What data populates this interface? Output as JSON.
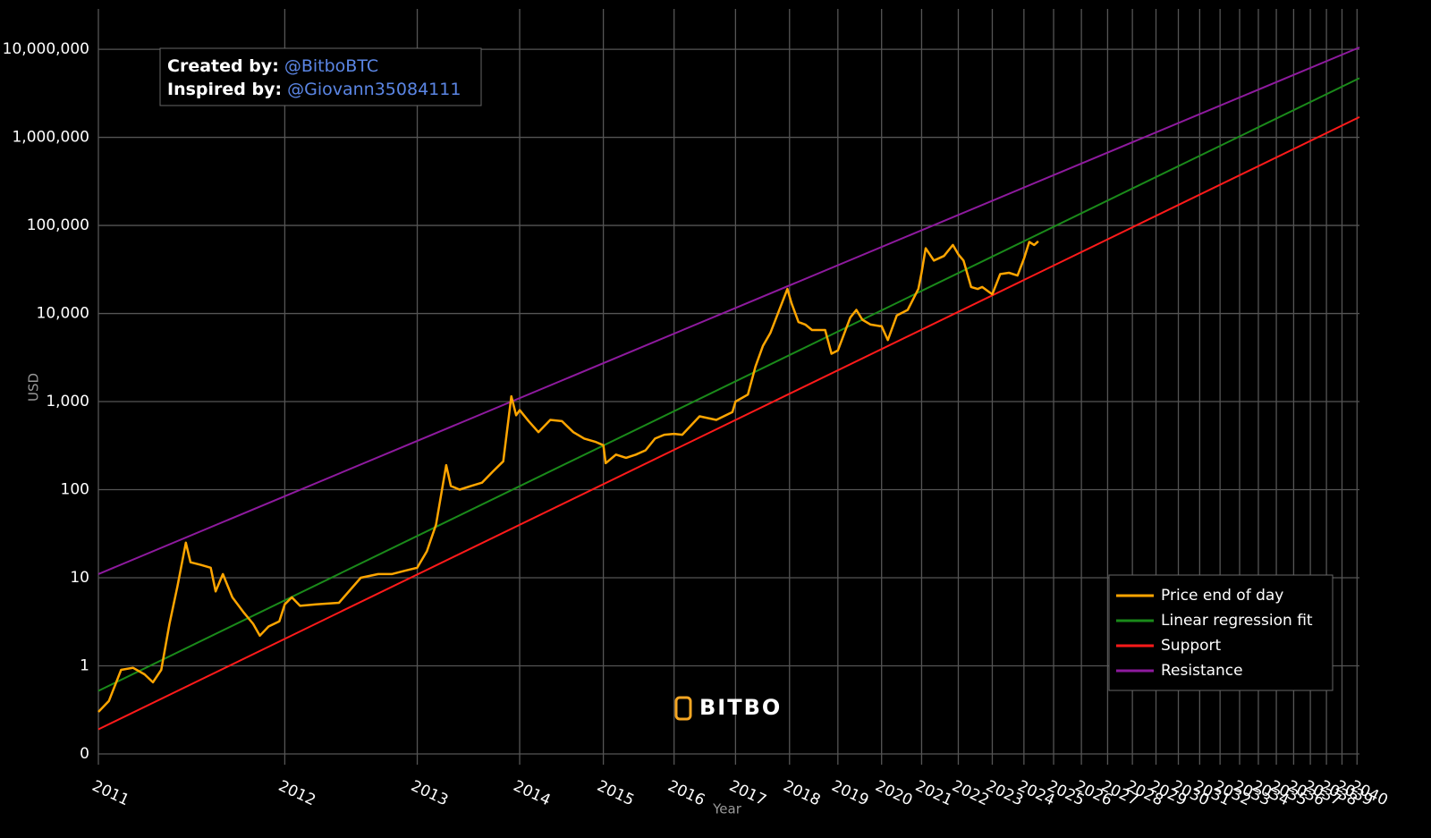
{
  "chart_data": {
    "type": "line",
    "x_label": "Year",
    "y_label": "USD",
    "x_scale": "log",
    "y_scale": "log",
    "grid": true,
    "legend": "bottom-right",
    "watermark": "BITBO",
    "annotation": [
      {
        "label": "Created by:",
        "handle": "@BitboBTC"
      },
      {
        "label": "Inspired by:",
        "handle": "@Giovann35084111"
      }
    ],
    "xlim": [
      728,
      11380
    ],
    "ylim": [
      0.0755,
      28700000
    ],
    "xticks": [
      {
        "value": 728,
        "label": "2011"
      },
      {
        "value": 1093,
        "label": "2012"
      },
      {
        "value": 1459,
        "label": "2013"
      },
      {
        "value": 1824,
        "label": "2014"
      },
      {
        "value": 2189,
        "label": "2015"
      },
      {
        "value": 2554,
        "label": "2016"
      },
      {
        "value": 2920,
        "label": "2017"
      },
      {
        "value": 3285,
        "label": "2018"
      },
      {
        "value": 3650,
        "label": "2019"
      },
      {
        "value": 4015,
        "label": "2020"
      },
      {
        "value": 4381,
        "label": "2021"
      },
      {
        "value": 4746,
        "label": "2022"
      },
      {
        "value": 5111,
        "label": "2023"
      },
      {
        "value": 5476,
        "label": "2024"
      },
      {
        "value": 5842,
        "label": "2025"
      },
      {
        "value": 6207,
        "label": "2026"
      },
      {
        "value": 6572,
        "label": "2027"
      },
      {
        "value": 6937,
        "label": "2028"
      },
      {
        "value": 7303,
        "label": "2029"
      },
      {
        "value": 7668,
        "label": "2030"
      },
      {
        "value": 8033,
        "label": "2031"
      },
      {
        "value": 8398,
        "label": "2032"
      },
      {
        "value": 8764,
        "label": "2033"
      },
      {
        "value": 9129,
        "label": "2034"
      },
      {
        "value": 9494,
        "label": "2035"
      },
      {
        "value": 9859,
        "label": "2036"
      },
      {
        "value": 10225,
        "label": "2037"
      },
      {
        "value": 10590,
        "label": "2038"
      },
      {
        "value": 10955,
        "label": "2039"
      },
      {
        "value": 11320,
        "label": "2040"
      }
    ],
    "yticks": [
      {
        "value": 0.1,
        "label": "0"
      },
      1,
      10,
      100,
      {
        "value": 1000,
        "label": "1,000"
      },
      {
        "value": 10000,
        "label": "10,000"
      },
      {
        "value": 100000,
        "label": "100,000"
      },
      {
        "value": 1000000,
        "label": "1,000,000"
      },
      {
        "value": 10000000,
        "label": "10,000,000"
      }
    ],
    "series": [
      {
        "name": "Price end of day",
        "color": "#ffa500",
        "x": [
          728,
          745,
          765,
          785,
          805,
          820,
          835,
          850,
          865,
          881,
          890,
          910,
          930,
          940,
          955,
          975,
          1000,
          1020,
          1035,
          1055,
          1080,
          1093,
          1110,
          1130,
          1170,
          1230,
          1290,
          1340,
          1380,
          1420,
          1459,
          1490,
          1520,
          1554,
          1570,
          1600,
          1640,
          1680,
          1720,
          1760,
          1791,
          1810,
          1824,
          1860,
          1900,
          1950,
          2000,
          2050,
          2100,
          2150,
          2189,
          2200,
          2250,
          2300,
          2350,
          2400,
          2450,
          2500,
          2554,
          2600,
          2700,
          2800,
          2900,
          2920,
          3000,
          3050,
          3100,
          3150,
          3270,
          3300,
          3350,
          3400,
          3450,
          3550,
          3600,
          3650,
          3750,
          3800,
          3850,
          3920,
          4000,
          4015,
          4070,
          4150,
          4250,
          4350,
          4381,
          4420,
          4500,
          4600,
          4690,
          4746,
          4800,
          4880,
          4950,
          5000,
          5111,
          5200,
          5300,
          5400,
          5476,
          5540,
          5600,
          5650
        ],
        "values": [
          0.3,
          0.4,
          0.9,
          0.95,
          0.8,
          0.65,
          0.9,
          3,
          8,
          25,
          15,
          14,
          13,
          7,
          11,
          6,
          4,
          3,
          2.2,
          2.8,
          3.2,
          5,
          6,
          4.8,
          5,
          5.2,
          10,
          11,
          11,
          12,
          13,
          20,
          40,
          190,
          110,
          100,
          110,
          120,
          160,
          210,
          1150,
          700,
          800,
          600,
          450,
          620,
          600,
          450,
          380,
          350,
          320,
          200,
          250,
          230,
          250,
          280,
          380,
          420,
          430,
          420,
          680,
          620,
          760,
          1000,
          1200,
          2500,
          4300,
          6000,
          19000,
          13000,
          8000,
          7500,
          6500,
          6500,
          3500,
          3800,
          9000,
          11000,
          8500,
          7500,
          7200,
          7200,
          5000,
          9500,
          11000,
          19000,
          29000,
          55000,
          40000,
          45000,
          60000,
          47000,
          40000,
          20000,
          19000,
          20000,
          16500,
          28000,
          29000,
          27000,
          42000,
          65000,
          60000,
          66000
        ]
      },
      {
        "name": "Linear regression fit",
        "color": "#1a8a1a",
        "x": [
          728,
          11380
        ],
        "values": [
          0.52,
          4700000
        ]
      },
      {
        "name": "Support",
        "color": "#ff1a1a",
        "x": [
          728,
          11380
        ],
        "values": [
          0.19,
          1700000
        ]
      },
      {
        "name": "Resistance",
        "color": "#8e1a9e",
        "x": [
          728,
          11380
        ],
        "values": [
          11,
          10500000
        ]
      }
    ]
  }
}
